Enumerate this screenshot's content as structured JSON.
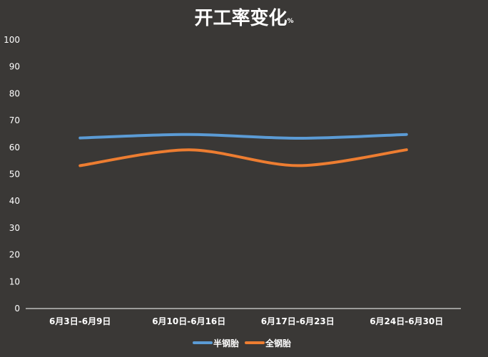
{
  "chart_data": {
    "type": "line",
    "title": "开工率变化",
    "title_unit": "%",
    "categories": [
      "6月3日-6月9日",
      "6月10日-6月16日",
      "6月17日-6月23日",
      "6月24日-6月30日"
    ],
    "series": [
      {
        "name": "半钢胎",
        "color": "#5b9bd5",
        "values": [
          63.5,
          64.8,
          63.4,
          64.8
        ]
      },
      {
        "name": "全钢胎",
        "color": "#ed7d31",
        "values": [
          53.2,
          59.1,
          53.2,
          59.1
        ]
      }
    ],
    "ylim": [
      0,
      100
    ],
    "yticks": [
      "0",
      "10",
      "20",
      "30",
      "40",
      "50",
      "60",
      "70",
      "80",
      "90",
      "100"
    ],
    "grid": false,
    "legend": "bottom",
    "background": "#3a3836",
    "axis_color": "#ffffff"
  }
}
